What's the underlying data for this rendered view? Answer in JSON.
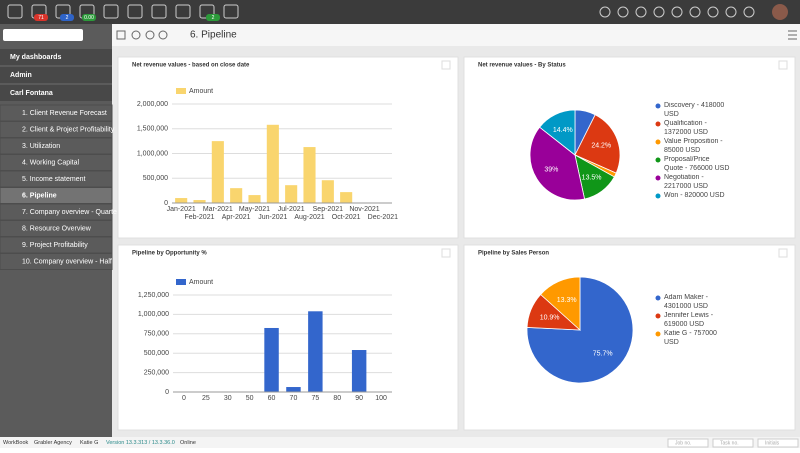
{
  "topbar": {
    "badges": [
      "71",
      "2",
      "0.00",
      "2"
    ]
  },
  "sidebar": {
    "sections": [
      "My dashboards",
      "Admin",
      "Carl Fontana"
    ],
    "items": [
      "1. Client Revenue Forecast",
      "2. Client & Project Profitability",
      "3. Utilization",
      "4. Working Capital",
      "5. Income statement",
      "6. Pipeline",
      "7. Company overview - Quarte",
      "8. Resource Overview",
      "9. Project Profitability",
      "10. Company overview - Half"
    ],
    "active": 5
  },
  "toolbar": {
    "title": "6. Pipeline"
  },
  "chart_data": [
    {
      "type": "bar",
      "title": "Net revenue values - based on close date",
      "categories": [
        "Jan-2021",
        "Feb-2021",
        "Mar-2021",
        "Apr-2021",
        "May-2021",
        "Jun-2021",
        "Jul-2021",
        "Aug-2021",
        "Sep-2021",
        "Oct-2021",
        "Nov-2021",
        "Dec-2021"
      ],
      "series": [
        {
          "name": "Amount",
          "color": "#f9d56e",
          "values": [
            100000,
            60000,
            1250000,
            300000,
            160000,
            1580000,
            360000,
            1130000,
            460000,
            220000,
            0,
            0
          ]
        }
      ],
      "ylim": [
        0,
        2000000
      ],
      "yticks": [
        0,
        {
          "value": 500000,
          "label": "500,000"
        },
        {
          "value": 1000000,
          "label": "1,000,000"
        },
        {
          "value": 1500000,
          "label": "1,500,000"
        },
        {
          "value": 2000000,
          "label": "2,000,000"
        }
      ],
      "grid": true
    },
    {
      "type": "pie",
      "title": "Net revenue values - By Status",
      "categories": [
        "Discovery - 418000 USD",
        "Qualification - 1372000 USD",
        "Value Proposition - 85000 USD",
        "Proposal/Price Quote - 766000 USD",
        "Negotiation - 2217000 USD",
        "Won - 820000 USD"
      ],
      "values": [
        7.4,
        24.2,
        1.5,
        13.5,
        39,
        14.4
      ],
      "value_labels": [
        null,
        "24.2%",
        null,
        "13.5%",
        "39%",
        "14.4%"
      ],
      "colors": [
        "#3366cc",
        "#dc3912",
        "#ff9900",
        "#109618",
        "#990099",
        "#0099c6"
      ]
    },
    {
      "type": "bar",
      "title": "Pipeline by Opportunity %",
      "categories": [
        "0",
        "25",
        "30",
        "50",
        "60",
        "70",
        "75",
        "80",
        "90",
        "100"
      ],
      "series": [
        {
          "name": "Amount",
          "color": "#3366cc",
          "values": [
            0,
            0,
            0,
            0,
            825000,
            64000,
            1040000,
            0,
            541000,
            0
          ]
        }
      ],
      "ylim": [
        0,
        1250000
      ],
      "yticks": [
        0,
        {
          "value": 250000,
          "label": "250,000"
        },
        {
          "value": 500000,
          "label": "500,000"
        },
        {
          "value": 750000,
          "label": "750,000"
        },
        {
          "value": 1000000,
          "label": "1,000,000"
        },
        {
          "value": 1250000,
          "label": "1,250,000"
        }
      ],
      "grid": true
    },
    {
      "type": "pie",
      "title": "Pipeline by Sales Person",
      "categories": [
        "Adam Maker - 4301000 USD",
        "Jennifer Lewis - 619000 USD",
        "Katie G - 757000 USD"
      ],
      "values": [
        75.7,
        10.9,
        13.3
      ],
      "value_labels": [
        "75.7%",
        "10.9%",
        "13.3%"
      ],
      "colors": [
        "#3366cc",
        "#dc3912",
        "#ff9900"
      ]
    }
  ],
  "statusbar": {
    "items": [
      "WorkBook",
      "Grabler Agency",
      "Katie G",
      "Version 13.3.313 / 13.3.36.0",
      "Online"
    ],
    "inputs": [
      "Job no.",
      "Task no.",
      "Initials"
    ]
  }
}
